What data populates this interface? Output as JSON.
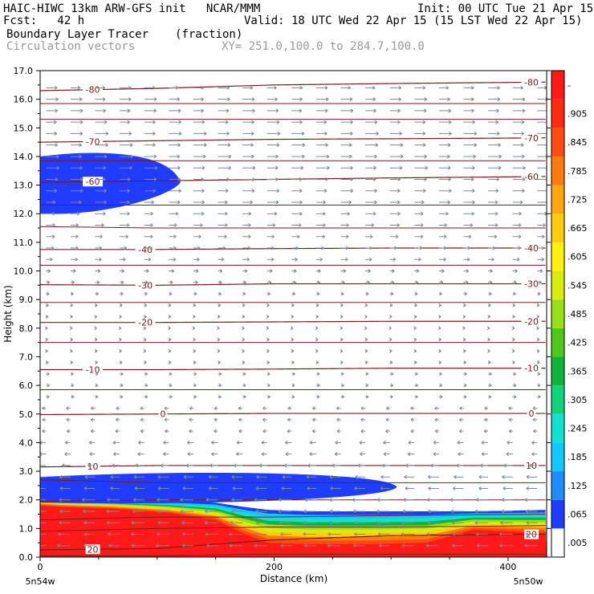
{
  "header": {
    "title_left": "HAIC-HIWC 13km ARW-GFS init   NCAR/MMM",
    "init": "Init: 00 UTC Tue 21 Apr 15",
    "fcst": "Fcst:   42 h",
    "valid": "Valid: 18 UTC Wed 22 Apr 15 (15 LST Wed 22 Apr 15)",
    "field_name": "Boundary Layer Tracer",
    "field_units": "(fraction)",
    "vector_label": "Circulation vectors",
    "xy_text": "XY= 251.0,100.0 to 284.7,100.0"
  },
  "x_axis": {
    "title": "Distance (km)",
    "left_label": "5n54w",
    "right_label": "5n50w"
  },
  "colors": {
    "contour": "#7a1a1a",
    "vector": "#7a8a9a",
    "tracer_low": "#1f3cff",
    "tracer_high": "#ff1a1a"
  },
  "chart_data": {
    "type": "heatmap",
    "title": "Boundary Layer Tracer",
    "units": "(fraction)",
    "xlabel": "Distance (km)",
    "ylabel": "Height (km)",
    "xlim": [
      0,
      433
    ],
    "ylim": [
      0,
      17
    ],
    "xticks": [
      0,
      200,
      400
    ],
    "yticks": [
      0.0,
      1.0,
      2.0,
      3.0,
      4.0,
      5.0,
      6.0,
      7.0,
      8.0,
      9.0,
      10.0,
      11.0,
      12.0,
      13.0,
      14.0,
      15.0,
      16.0,
      17.0
    ],
    "ytick_labels": [
      "0.0",
      "1.0",
      "2.0",
      "3.0",
      "4.0",
      "5.0",
      "6.0",
      "7.0",
      "8.0",
      "9.0",
      "10.0",
      "11.0",
      "12.0",
      "13.0",
      "14.0",
      "15.0",
      "16.0",
      "17.0"
    ],
    "colorbar": {
      "labels": [
        ".005",
        ".065",
        ".125",
        ".185",
        ".245",
        ".305",
        ".365",
        ".425",
        ".485",
        ".545",
        ".605",
        ".665",
        ".725",
        ".785",
        ".845",
        ".905",
        "-"
      ],
      "colors": [
        "#ffffff",
        "#1f3cff",
        "#1f8cff",
        "#12c8ff",
        "#14e0d0",
        "#12d27a",
        "#10b43c",
        "#4ec81a",
        "#9ade14",
        "#d8ec12",
        "#fff014",
        "#ffcc12",
        "#ffa510",
        "#ff7a10",
        "#ff4a12",
        "#ff2a14",
        "#ff1a1a"
      ]
    },
    "contours": [
      {
        "value": 20,
        "label": "20",
        "heights": [
          0.25,
          0.3,
          0.6,
          0.75,
          0.8
        ]
      },
      {
        "value": 10,
        "label": "10",
        "heights": [
          3.15,
          3.2,
          3.2,
          3.2,
          3.2
        ]
      },
      {
        "value": 0,
        "label": "0",
        "heights": [
          4.98,
          5.0,
          5.02,
          5.02,
          5.02
        ]
      },
      {
        "value": -10,
        "label": "-10",
        "heights": [
          6.55,
          6.55,
          6.57,
          6.6,
          6.6
        ]
      },
      {
        "value": -20,
        "label": "-20",
        "heights": [
          8.2,
          8.2,
          8.22,
          8.24,
          8.24
        ]
      },
      {
        "value": -30,
        "label": "-30",
        "heights": [
          9.52,
          9.5,
          9.55,
          9.55,
          9.55
        ]
      },
      {
        "value": -40,
        "label": "-40",
        "heights": [
          10.75,
          10.75,
          10.78,
          10.8,
          10.8
        ]
      },
      {
        "value": -60,
        "label": "-60",
        "heights": [
          13.1,
          13.15,
          13.2,
          13.25,
          13.3
        ]
      },
      {
        "value": -70,
        "label": "-70",
        "heights": [
          14.5,
          14.55,
          14.6,
          14.62,
          14.65
        ]
      },
      {
        "value": -80,
        "label": "-80",
        "heights": [
          16.3,
          16.38,
          16.5,
          16.55,
          16.6
        ]
      }
    ],
    "extra_contours": [
      {
        "heights": [
          0.05,
          0.05,
          0.1,
          0.1,
          0.1
        ]
      },
      {
        "heights": [
          0.9,
          1.0,
          1.05,
          1.05,
          1.1
        ]
      },
      {
        "heights": [
          1.3,
          1.4,
          1.4,
          1.45,
          1.5
        ]
      },
      {
        "heights": [
          1.95,
          2.0,
          2.0,
          2.0,
          2.0
        ]
      },
      {
        "heights": [
          2.7,
          2.6,
          2.6,
          2.6,
          2.6
        ]
      },
      {
        "heights": [
          5.85,
          5.85,
          5.85,
          5.85,
          5.85
        ]
      },
      {
        "heights": [
          7.5,
          7.5,
          7.5,
          7.5,
          7.5
        ]
      },
      {
        "heights": [
          8.9,
          8.9,
          8.9,
          8.9,
          8.9
        ]
      },
      {
        "heights": [
          10.2,
          10.2,
          10.2,
          10.2,
          10.2
        ]
      },
      {
        "heights": [
          11.55,
          11.5,
          11.5,
          11.5,
          11.5
        ]
      },
      {
        "heights": [
          12.3,
          12.3,
          12.3,
          12.3,
          12.3
        ]
      },
      {
        "heights": [
          13.85,
          13.85,
          13.85,
          13.85,
          13.85
        ]
      },
      {
        "heights": [
          15.3,
          15.3,
          15.3,
          15.3,
          15.3
        ]
      },
      {
        "heights": [
          15.85,
          15.85,
          15.85,
          15.85,
          15.85
        ]
      }
    ],
    "contour_x": [
      0,
      100,
      200,
      300,
      433
    ],
    "boundary_layer": {
      "profile_x": [
        0,
        20,
        60,
        110,
        150,
        175,
        195,
        230,
        280,
        330,
        370,
        400,
        433
      ],
      "red_top": [
        1.8,
        1.75,
        1.7,
        1.55,
        1.3,
        0.8,
        0.5,
        0.45,
        0.45,
        0.5,
        0.95,
        0.9,
        0.85
      ],
      "blue_top": [
        2.1,
        2.05,
        2.0,
        1.95,
        1.9,
        1.75,
        1.65,
        1.6,
        1.6,
        1.6,
        1.6,
        1.62,
        1.65
      ]
    },
    "tracer_features": [
      {
        "name": "upper-blob",
        "x": [
          0,
          120
        ],
        "y": [
          12.0,
          14.2
        ],
        "value": 0.065
      },
      {
        "name": "lower-blob",
        "x": [
          0,
          305
        ],
        "y": [
          1.9,
          3.0
        ],
        "value": 0.065
      }
    ],
    "vectors": {
      "note": "circulation vectors",
      "rows_km": [
        0.4,
        0.8,
        1.2,
        1.6,
        2.0,
        2.4,
        2.8,
        3.2,
        3.6,
        4.0,
        4.4,
        4.8,
        5.2,
        5.6,
        6.0,
        6.4,
        6.8,
        7.2,
        7.6,
        8.0,
        8.4,
        8.8,
        9.2,
        9.6,
        10.0,
        10.4,
        10.8,
        11.2,
        11.6,
        12.0,
        12.4,
        12.8,
        13.2,
        13.6,
        14.0,
        14.4,
        14.8,
        15.2,
        15.6,
        16.0,
        16.4
      ],
      "u": [
        -3,
        -3,
        -3,
        -3,
        -3,
        -2.5,
        -2.5,
        -2,
        -1.5,
        -1.5,
        -1,
        -1,
        -1,
        0.8,
        0.8,
        0.8,
        0.6,
        0.5,
        0.5,
        0.4,
        0.5,
        0.6,
        0.8,
        1,
        1.2,
        1.6,
        1.8,
        2,
        2.2,
        2.4,
        2.6,
        2.8,
        2.8,
        3,
        3,
        3,
        3,
        2.8,
        2.8,
        2.8,
        2.6
      ]
    }
  }
}
